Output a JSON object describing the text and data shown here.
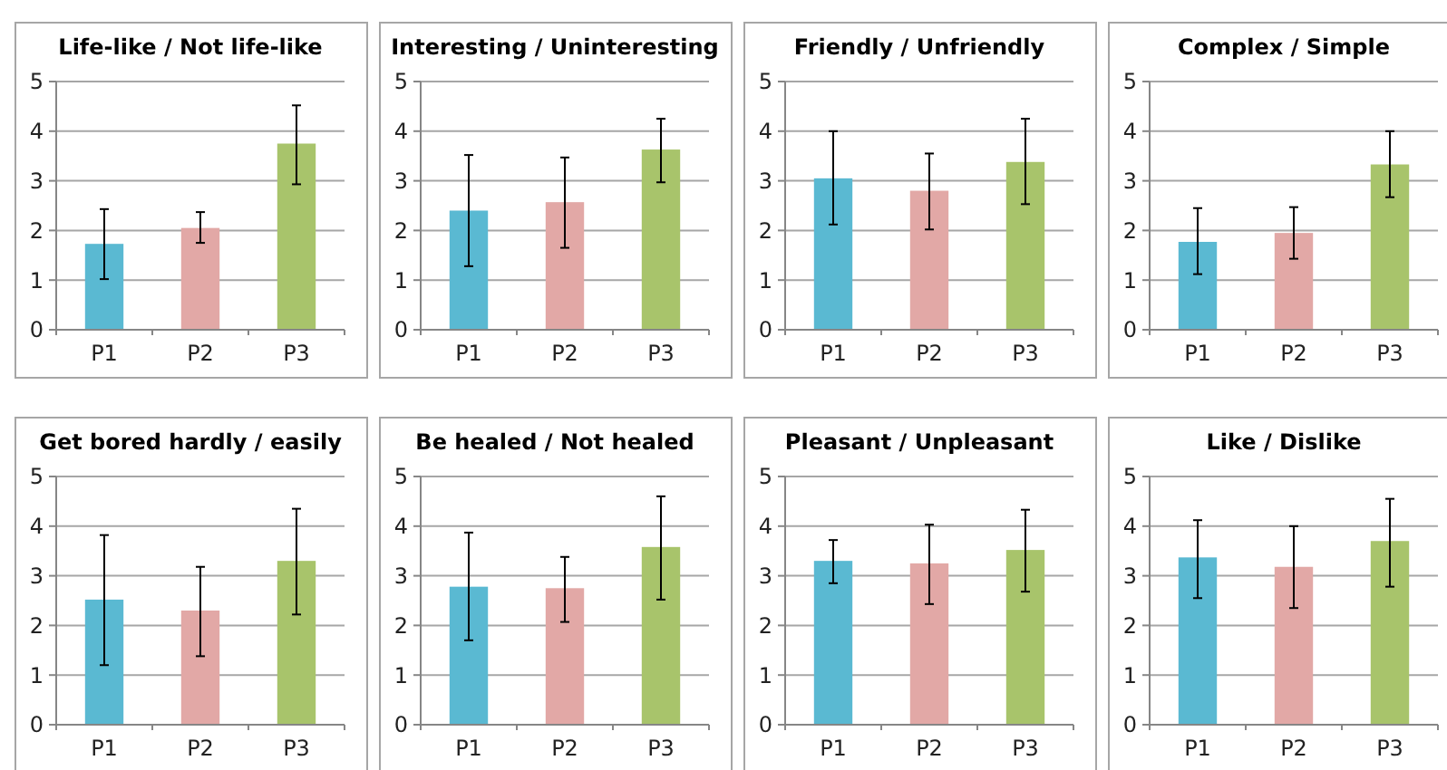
{
  "chart_data": [
    {
      "type": "bar",
      "title": "Life-like / Not life-like",
      "categories": [
        "P1",
        "P2",
        "P3"
      ],
      "values": [
        1.73,
        2.05,
        3.75
      ],
      "errors": [
        [
          1.02,
          2.43
        ],
        [
          1.75,
          2.37
        ],
        [
          2.93,
          4.52
        ]
      ],
      "colors": [
        "#5ab9d2",
        "#e2a8a6",
        "#a8c46b"
      ],
      "ylim": [
        0,
        5
      ],
      "yticks": [
        0,
        1,
        2,
        3,
        4,
        5
      ],
      "grid": "y"
    },
    {
      "type": "bar",
      "title": "Interesting / Uninteresting",
      "categories": [
        "P1",
        "P2",
        "P3"
      ],
      "values": [
        2.4,
        2.57,
        3.63
      ],
      "errors": [
        [
          1.28,
          3.52
        ],
        [
          1.65,
          3.47
        ],
        [
          2.97,
          4.25
        ]
      ],
      "colors": [
        "#5ab9d2",
        "#e2a8a6",
        "#a8c46b"
      ],
      "ylim": [
        0,
        5
      ],
      "yticks": [
        0,
        1,
        2,
        3,
        4,
        5
      ],
      "grid": "y"
    },
    {
      "type": "bar",
      "title": "Friendly / Unfriendly",
      "categories": [
        "P1",
        "P2",
        "P3"
      ],
      "values": [
        3.05,
        2.8,
        3.38
      ],
      "errors": [
        [
          2.12,
          4.0
        ],
        [
          2.02,
          3.55
        ],
        [
          2.53,
          4.25
        ]
      ],
      "colors": [
        "#5ab9d2",
        "#e2a8a6",
        "#a8c46b"
      ],
      "ylim": [
        0,
        5
      ],
      "yticks": [
        0,
        1,
        2,
        3,
        4,
        5
      ],
      "grid": "y"
    },
    {
      "type": "bar",
      "title": "Complex / Simple",
      "categories": [
        "P1",
        "P2",
        "P3"
      ],
      "values": [
        1.77,
        1.95,
        3.33
      ],
      "errors": [
        [
          1.12,
          2.45
        ],
        [
          1.43,
          2.47
        ],
        [
          2.67,
          4.0
        ]
      ],
      "colors": [
        "#5ab9d2",
        "#e2a8a6",
        "#a8c46b"
      ],
      "ylim": [
        0,
        5
      ],
      "yticks": [
        0,
        1,
        2,
        3,
        4,
        5
      ],
      "grid": "y"
    },
    {
      "type": "bar",
      "title": "Get bored hardly / easily",
      "categories": [
        "P1",
        "P2",
        "P3"
      ],
      "values": [
        2.52,
        2.3,
        3.3
      ],
      "errors": [
        [
          1.2,
          3.82
        ],
        [
          1.38,
          3.18
        ],
        [
          2.22,
          4.35
        ]
      ],
      "colors": [
        "#5ab9d2",
        "#e2a8a6",
        "#a8c46b"
      ],
      "ylim": [
        0,
        5
      ],
      "yticks": [
        0,
        1,
        2,
        3,
        4,
        5
      ],
      "grid": "y"
    },
    {
      "type": "bar",
      "title": "Be healed / Not healed",
      "categories": [
        "P1",
        "P2",
        "P3"
      ],
      "values": [
        2.78,
        2.75,
        3.58
      ],
      "errors": [
        [
          1.7,
          3.87
        ],
        [
          2.07,
          3.38
        ],
        [
          2.52,
          4.6
        ]
      ],
      "colors": [
        "#5ab9d2",
        "#e2a8a6",
        "#a8c46b"
      ],
      "ylim": [
        0,
        5
      ],
      "yticks": [
        0,
        1,
        2,
        3,
        4,
        5
      ],
      "grid": "y"
    },
    {
      "type": "bar",
      "title": "Pleasant / Unpleasant",
      "categories": [
        "P1",
        "P2",
        "P3"
      ],
      "values": [
        3.3,
        3.25,
        3.52
      ],
      "errors": [
        [
          2.85,
          3.72
        ],
        [
          2.43,
          4.03
        ],
        [
          2.68,
          4.33
        ]
      ],
      "colors": [
        "#5ab9d2",
        "#e2a8a6",
        "#a8c46b"
      ],
      "ylim": [
        0,
        5
      ],
      "yticks": [
        0,
        1,
        2,
        3,
        4,
        5
      ],
      "grid": "y"
    },
    {
      "type": "bar",
      "title": "Like / Dislike",
      "categories": [
        "P1",
        "P2",
        "P3"
      ],
      "values": [
        3.37,
        3.18,
        3.7
      ],
      "errors": [
        [
          2.55,
          4.12
        ],
        [
          2.35,
          4.0
        ],
        [
          2.78,
          4.55
        ]
      ],
      "colors": [
        "#5ab9d2",
        "#e2a8a6",
        "#a8c46b"
      ],
      "ylim": [
        0,
        5
      ],
      "yticks": [
        0,
        1,
        2,
        3,
        4,
        5
      ],
      "grid": "y"
    }
  ]
}
